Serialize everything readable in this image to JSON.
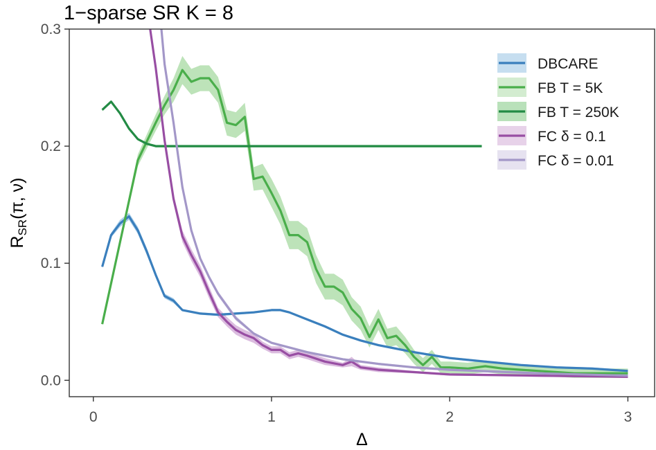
{
  "chart_data": {
    "type": "line",
    "title": "1−sparse SR K = 8",
    "xlabel": "Δ",
    "ylabel": {
      "main": "R",
      "sub": "SR",
      "args": "(π, ν)"
    },
    "xlim": [
      -0.135,
      3.15
    ],
    "ylim": [
      -0.014,
      0.3
    ],
    "x_ticks": [
      0,
      1,
      2,
      3
    ],
    "x_tick_labels": [
      "0",
      "1",
      "2",
      "3"
    ],
    "y_ticks": [
      0.0,
      0.1,
      0.2,
      0.3
    ],
    "y_tick_labels": [
      "0.0",
      "0.1",
      "0.2",
      "0.3"
    ],
    "legend_position": "top-right",
    "series": [
      {
        "name": "DBCARE",
        "color": "#3a7fbd",
        "band_color": "#8dbde2",
        "x": [
          0.05,
          0.1,
          0.15,
          0.2,
          0.25,
          0.3,
          0.35,
          0.4,
          0.45,
          0.5,
          0.6,
          0.7,
          0.8,
          0.9,
          1.0,
          1.05,
          1.1,
          1.2,
          1.3,
          1.4,
          1.5,
          1.6,
          1.8,
          2.0,
          2.2,
          2.4,
          2.6,
          2.8,
          3.0
        ],
        "y": [
          0.097,
          0.124,
          0.134,
          0.14,
          0.128,
          0.11,
          0.09,
          0.072,
          0.068,
          0.06,
          0.057,
          0.056,
          0.057,
          0.058,
          0.06,
          0.06,
          0.058,
          0.052,
          0.046,
          0.039,
          0.034,
          0.03,
          0.024,
          0.019,
          0.016,
          0.013,
          0.011,
          0.01,
          0.008
        ],
        "band": [
          0.001,
          0.002,
          0.003,
          0.003,
          0.003,
          0.003,
          0.002,
          0.002,
          0.002,
          0.001,
          0.001,
          0.001,
          0.001,
          0.001,
          0.001,
          0.001,
          0.001,
          0.001,
          0.001,
          0.001,
          0.001,
          0.001,
          0.001,
          0.001,
          0.001,
          0.001,
          0.001,
          0.001,
          0.001
        ]
      },
      {
        "name": "FB T = 5K",
        "color": "#4aae4b",
        "band_color": "#a7d9a1",
        "x": [
          0.05,
          0.25,
          0.35,
          0.4,
          0.45,
          0.5,
          0.55,
          0.6,
          0.65,
          0.7,
          0.75,
          0.8,
          0.85,
          0.9,
          0.95,
          1.0,
          1.05,
          1.1,
          1.15,
          1.2,
          1.25,
          1.3,
          1.35,
          1.4,
          1.45,
          1.5,
          1.55,
          1.6,
          1.65,
          1.7,
          1.75,
          1.8,
          1.85,
          1.9,
          1.95,
          2.0,
          2.1,
          2.2,
          2.3,
          2.4,
          2.5,
          2.6,
          2.7,
          2.8,
          2.9,
          3.0
        ],
        "y": [
          0.048,
          0.188,
          0.22,
          0.235,
          0.248,
          0.265,
          0.255,
          0.258,
          0.258,
          0.248,
          0.22,
          0.218,
          0.225,
          0.172,
          0.174,
          0.16,
          0.145,
          0.124,
          0.124,
          0.118,
          0.095,
          0.08,
          0.08,
          0.075,
          0.061,
          0.053,
          0.037,
          0.052,
          0.036,
          0.038,
          0.03,
          0.02,
          0.013,
          0.02,
          0.011,
          0.011,
          0.01,
          0.012,
          0.01,
          0.009,
          0.008,
          0.007,
          0.006,
          0.006,
          0.006,
          0.006
        ],
        "band": [
          0.001,
          0.005,
          0.007,
          0.008,
          0.01,
          0.012,
          0.011,
          0.011,
          0.011,
          0.011,
          0.011,
          0.011,
          0.012,
          0.01,
          0.011,
          0.012,
          0.012,
          0.012,
          0.012,
          0.012,
          0.012,
          0.011,
          0.011,
          0.011,
          0.01,
          0.01,
          0.009,
          0.009,
          0.008,
          0.008,
          0.007,
          0.006,
          0.006,
          0.006,
          0.005,
          0.005,
          0.005,
          0.005,
          0.005,
          0.004,
          0.004,
          0.004,
          0.004,
          0.004,
          0.004,
          0.004
        ]
      },
      {
        "name": "FB T = 250K",
        "color": "#238b45",
        "band_color": "#74c476",
        "x": [
          0.05,
          0.1,
          0.15,
          0.2,
          0.25,
          0.3,
          0.35,
          0.4,
          0.5,
          0.6,
          0.8,
          1.0,
          1.5,
          2.0,
          2.18
        ],
        "y": [
          0.231,
          0.238,
          0.228,
          0.215,
          0.206,
          0.202,
          0.2,
          0.2,
          0.2,
          0.2,
          0.2,
          0.2,
          0.2,
          0.2,
          0.2
        ],
        "band": [
          0.001,
          0.001,
          0.001,
          0.001,
          0.001,
          0.001,
          0.001,
          0.001,
          0.001,
          0.001,
          0.001,
          0.001,
          0.001,
          0.001,
          0.001
        ]
      },
      {
        "name": "FC δ = 0.1",
        "color": "#984ea3",
        "band_color": "#cfa5d4",
        "x": [
          0.3,
          0.35,
          0.4,
          0.45,
          0.5,
          0.55,
          0.6,
          0.65,
          0.7,
          0.75,
          0.8,
          0.85,
          0.9,
          0.95,
          1.0,
          1.05,
          1.1,
          1.15,
          1.2,
          1.3,
          1.4,
          1.45,
          1.5,
          1.6,
          1.8,
          2.0,
          2.5,
          3.0
        ],
        "y": [
          0.32,
          0.267,
          0.205,
          0.155,
          0.123,
          0.107,
          0.093,
          0.075,
          0.058,
          0.05,
          0.043,
          0.039,
          0.036,
          0.03,
          0.026,
          0.026,
          0.021,
          0.023,
          0.021,
          0.016,
          0.013,
          0.016,
          0.011,
          0.009,
          0.007,
          0.005,
          0.004,
          0.003
        ],
        "band": [
          0.004,
          0.004,
          0.004,
          0.004,
          0.005,
          0.005,
          0.005,
          0.005,
          0.004,
          0.004,
          0.004,
          0.004,
          0.004,
          0.003,
          0.003,
          0.003,
          0.003,
          0.003,
          0.003,
          0.003,
          0.002,
          0.004,
          0.002,
          0.002,
          0.001,
          0.001,
          0.001,
          0.001
        ]
      },
      {
        "name": "FC δ = 0.01",
        "color": "#a397c8",
        "band_color": "#cdc6e2",
        "x": [
          0.37,
          0.4,
          0.45,
          0.5,
          0.55,
          0.6,
          0.65,
          0.7,
          0.8,
          0.9,
          1.0,
          1.2,
          1.4,
          1.6,
          1.8,
          2.0,
          2.5,
          3.0
        ],
        "y": [
          0.32,
          0.27,
          0.22,
          0.165,
          0.128,
          0.104,
          0.088,
          0.074,
          0.053,
          0.04,
          0.032,
          0.024,
          0.018,
          0.014,
          0.011,
          0.009,
          0.006,
          0.004
        ],
        "band": [
          0.002,
          0.002,
          0.002,
          0.002,
          0.002,
          0.002,
          0.002,
          0.002,
          0.002,
          0.001,
          0.001,
          0.001,
          0.001,
          0.001,
          0.001,
          0.001,
          0.001,
          0.001
        ]
      }
    ]
  }
}
